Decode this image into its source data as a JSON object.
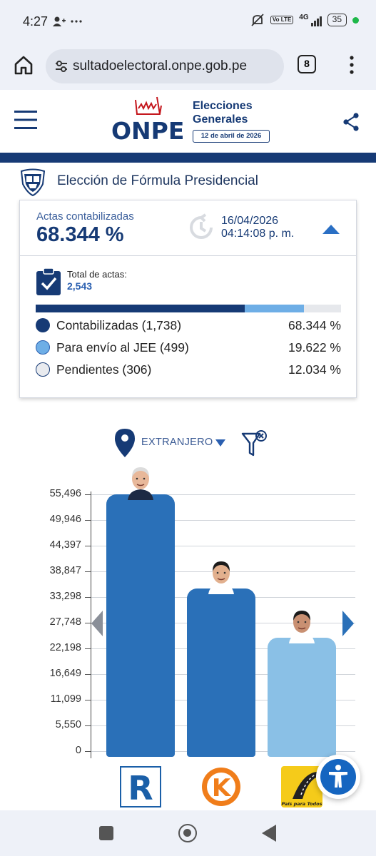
{
  "status_bar": {
    "time": "4:27",
    "left_icons": [
      "person-add-icon",
      "more-dots-icon"
    ],
    "right_icons": [
      "mute-icon",
      "volte-icon",
      "signal-4g-icon",
      "battery-icon"
    ],
    "network": "4G",
    "volte": "Vo LTE",
    "battery": "35"
  },
  "browser": {
    "url": "sultadoelectoral.onpe.gob.pe",
    "tab_count": "8"
  },
  "header": {
    "logo_text": "ONPE",
    "title_line1": "Elecciones",
    "title_line2": "Generales",
    "date_badge": "12 de abril de 2026",
    "accent": "#163a75"
  },
  "election": {
    "title": "Elección de Fórmula Presidencial"
  },
  "summary": {
    "actas_label": "Actas contabilizadas",
    "actas_value": "68.344 %",
    "date": "16/04/2026",
    "time": "04:14:08 p. m.",
    "total_label": "Total de actas:",
    "total_value": "2,543",
    "progress": {
      "contabilizadas": 0.68344,
      "jee": 0.19622
    },
    "legend": [
      {
        "label": "Contabilizadas (1,738)",
        "pct": "68.344 %",
        "color": "#163a75"
      },
      {
        "label": "Para envío al JEE (499)",
        "pct": "19.622 %",
        "color": "#6eaee6"
      },
      {
        "label": "Pendientes (306)",
        "pct": "12.034 %",
        "color": "#e9ebef"
      }
    ]
  },
  "filter": {
    "region": "EXTRANJERO"
  },
  "chart_data": {
    "type": "bar",
    "yticks": [
      "55,496",
      "49,946",
      "44,397",
      "38,847",
      "33,298",
      "27,748",
      "22,198",
      "16,649",
      "11,099",
      "5,550",
      "0"
    ],
    "ylim": [
      0,
      55496
    ],
    "series": [
      {
        "values": [
          55496,
          35200,
          24500
        ]
      }
    ],
    "bar_colors": [
      "#2a70b8",
      "#2a70b8",
      "#8ac0e6"
    ],
    "party_logos": [
      "R",
      "K",
      "País para Todos"
    ]
  }
}
